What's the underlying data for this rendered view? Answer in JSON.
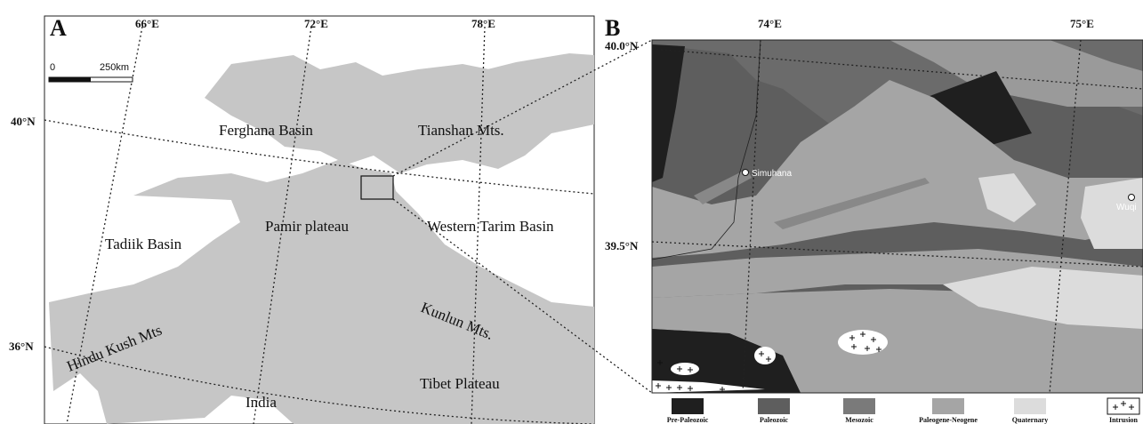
{
  "panel_a": {
    "label": "A",
    "longitudes": [
      "66°E",
      "72°E",
      "78°E"
    ],
    "latitudes": [
      "40°N",
      "36°N"
    ],
    "scale": [
      "0",
      "250km"
    ],
    "places": [
      "Ferghana Basin",
      "Tianshan Mts.",
      "Pamir plateau",
      "Western Tarim Basin",
      "Tadiik Basin",
      "Kunlun Mts.",
      "Hindu Kush Mts",
      "Tibet Plateau",
      "India"
    ]
  },
  "panel_b": {
    "label": "B",
    "longitudes": [
      "74°E",
      "75°E"
    ],
    "latitudes": [
      "40.0°N",
      "39.5°N"
    ],
    "towns": [
      "Simuhana",
      "Wuqi"
    ],
    "legend": [
      "Pre-Paleozoic",
      "Paleozoic",
      "Mesozoic",
      "Paleogene-Neogene",
      "Quaternary",
      "Intrusion"
    ]
  }
}
